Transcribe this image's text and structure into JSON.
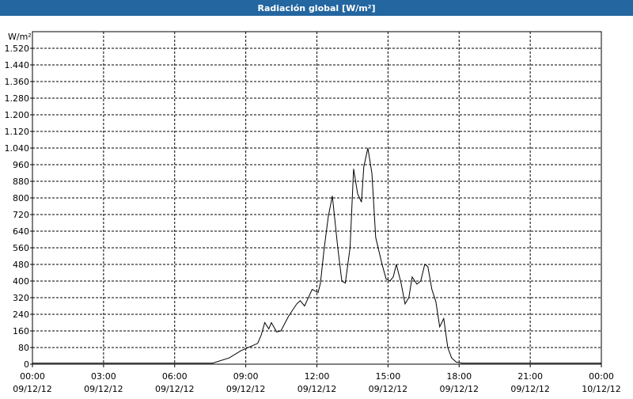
{
  "chart_data": {
    "type": "line",
    "title": "Radiación global [W/m²]",
    "y_label": "W/m²",
    "x": [
      0,
      7.6,
      8.3,
      8.8,
      9.3,
      9.5,
      9.65,
      9.8,
      9.97,
      10.08,
      10.3,
      10.48,
      10.8,
      11.15,
      11.3,
      11.48,
      11.8,
      12.05,
      12.15,
      12.3,
      12.48,
      12.65,
      12.88,
      13.05,
      13.2,
      13.4,
      13.55,
      13.72,
      13.88,
      13.98,
      14.15,
      14.32,
      14.48,
      14.75,
      14.92,
      15.08,
      15.22,
      15.35,
      15.55,
      15.72,
      15.88,
      16.02,
      16.22,
      16.38,
      16.55,
      16.68,
      16.85,
      17.02,
      17.18,
      17.35,
      17.52,
      17.68,
      17.88,
      18.15,
      24
    ],
    "series": [
      {
        "name": "Radiación global",
        "color": "#000000",
        "values": [
          5,
          5,
          30,
          65,
          90,
          100,
          140,
          200,
          170,
          200,
          155,
          160,
          230,
          290,
          305,
          280,
          360,
          345,
          390,
          550,
          710,
          810,
          560,
          400,
          390,
          560,
          940,
          820,
          780,
          950,
          1040,
          920,
          610,
          480,
          410,
          400,
          420,
          480,
          390,
          290,
          320,
          420,
          385,
          400,
          480,
          470,
          360,
          300,
          180,
          220,
          80,
          30,
          10,
          5,
          5
        ]
      }
    ],
    "xlim": [
      0,
      24
    ],
    "xticks": [
      {
        "value": 0,
        "label": "00:00",
        "date": "09/12/12"
      },
      {
        "value": 3,
        "label": "03:00",
        "date": "09/12/12"
      },
      {
        "value": 6,
        "label": "06:00",
        "date": "09/12/12"
      },
      {
        "value": 9,
        "label": "09:00",
        "date": "09/12/12"
      },
      {
        "value": 12,
        "label": "12:00",
        "date": "09/12/12"
      },
      {
        "value": 15,
        "label": "15:00",
        "date": "09/12/12"
      },
      {
        "value": 18,
        "label": "18:00",
        "date": "09/12/12"
      },
      {
        "value": 21,
        "label": "21:00",
        "date": "09/12/12"
      },
      {
        "value": 24,
        "label": "00:00",
        "date": "10/12/12"
      }
    ],
    "ylim": [
      0,
      1600
    ],
    "yticks": [
      0,
      80,
      160,
      240,
      320,
      400,
      480,
      560,
      640,
      720,
      800,
      880,
      960,
      {
        "value": 1040,
        "label": "1.040"
      },
      {
        "value": 1120,
        "label": "1.120"
      },
      {
        "value": 1200,
        "label": "1.200"
      },
      {
        "value": 1280,
        "label": "1.280"
      },
      {
        "value": 1360,
        "label": "1.360"
      },
      {
        "value": 1440,
        "label": "1.440"
      },
      {
        "value": 1520,
        "label": "1.520"
      }
    ],
    "grid": true
  }
}
